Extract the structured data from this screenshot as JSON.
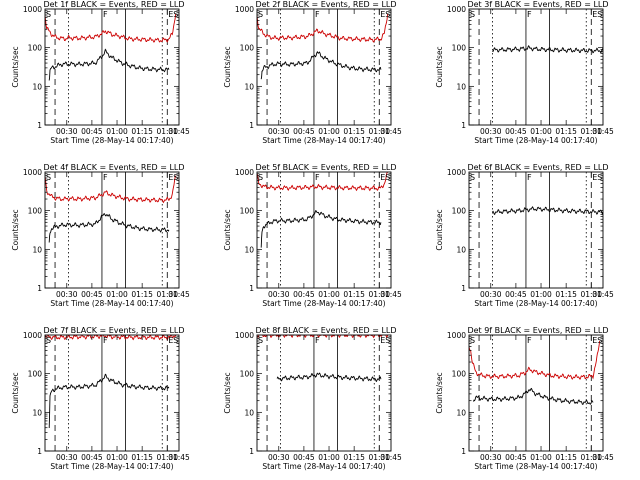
{
  "chart_data": [
    {
      "type": "line",
      "title": "Det 1f BLACK = Events, RED = LLD",
      "xlabel": "Start Time (28-May-14 00:17:40)",
      "ylabel": "Counts/sec",
      "x_ticks": [
        "00:30",
        "00:45",
        "01:00",
        "01:15",
        "01:30",
        "01:45"
      ],
      "y_ticks": [
        "1",
        "10",
        "100",
        "1000"
      ],
      "ylim": [
        1,
        1000
      ],
      "log_y": true,
      "markers": [
        "S",
        "F",
        "E",
        "S"
      ],
      "series": [
        {
          "color": "#cc0000",
          "t": [
            0,
            1,
            4,
            6,
            8,
            10,
            12,
            14,
            20,
            30,
            34,
            36,
            40,
            46,
            50,
            56,
            62,
            70,
            74,
            76,
            78
          ],
          "v": [
            700,
            320,
            220,
            190,
            180,
            175,
            170,
            180,
            175,
            190,
            230,
            270,
            220,
            190,
            170,
            165,
            160,
            155,
            165,
            230,
            750
          ]
        },
        {
          "color": "#000000",
          "t": [
            2.5,
            3,
            4,
            6,
            8,
            10,
            12,
            14,
            20,
            30,
            34,
            36,
            40,
            46,
            50,
            56,
            62,
            70,
            74
          ],
          "v": [
            14,
            25,
            30,
            32,
            35,
            37,
            38,
            38,
            37,
            40,
            60,
            80,
            55,
            40,
            35,
            30,
            28,
            27,
            27
          ]
        }
      ]
    },
    {
      "type": "line",
      "title": "Det 2f BLACK = Events, RED = LLD",
      "xlabel": "Start Time (28-May-14 00:17:40)",
      "ylabel": "Counts/sec",
      "x_ticks": [
        "00:30",
        "00:45",
        "01:00",
        "01:15",
        "01:30",
        "01:45"
      ],
      "y_ticks": [
        "1",
        "10",
        "100",
        "1000"
      ],
      "ylim": [
        1,
        1000
      ],
      "log_y": true,
      "markers": [
        "S",
        "F",
        "E",
        "S"
      ],
      "series": [
        {
          "color": "#cc0000",
          "t": [
            0,
            1,
            4,
            6,
            8,
            10,
            12,
            14,
            20,
            30,
            34,
            36,
            40,
            46,
            50,
            56,
            62,
            70,
            74,
            76,
            78
          ],
          "v": [
            700,
            320,
            230,
            200,
            185,
            180,
            175,
            180,
            180,
            195,
            240,
            280,
            230,
            195,
            175,
            170,
            165,
            160,
            170,
            230,
            750
          ]
        },
        {
          "color": "#000000",
          "t": [
            2.5,
            3,
            4,
            6,
            8,
            10,
            12,
            14,
            20,
            30,
            34,
            36,
            40,
            46,
            50,
            56,
            62,
            70,
            74
          ],
          "v": [
            14,
            25,
            30,
            32,
            35,
            37,
            38,
            38,
            37,
            40,
            60,
            75,
            55,
            40,
            35,
            30,
            28,
            27,
            27
          ]
        }
      ]
    },
    {
      "type": "line",
      "title": "Det 3f BLACK = Events, RED = LLD",
      "xlabel": "Start Time (28-May-14 00:17:40)",
      "ylabel": "Counts/sec",
      "x_ticks": [
        "00:30",
        "00:45",
        "01:00",
        "01:15",
        "01:30",
        "01:45"
      ],
      "y_ticks": [
        "1",
        "10",
        "100",
        "1000"
      ],
      "ylim": [
        1,
        1000
      ],
      "log_y": true,
      "markers": [
        "S",
        "F",
        "E",
        "S"
      ],
      "series": [
        {
          "color": "#000000",
          "t": [
            14,
            16,
            20,
            30,
            36,
            40,
            50,
            60,
            70,
            80
          ],
          "v": [
            85,
            88,
            88,
            92,
            98,
            92,
            88,
            86,
            84,
            84
          ]
        }
      ]
    },
    {
      "type": "line",
      "title": "Det 4f BLACK = Events, RED = LLD",
      "xlabel": "Start Time (28-May-14 00:17:40)",
      "ylabel": "Counts/sec",
      "x_ticks": [
        "00:30",
        "00:45",
        "01:00",
        "01:15",
        "01:30",
        "01:45"
      ],
      "y_ticks": [
        "1",
        "10",
        "100",
        "1000"
      ],
      "ylim": [
        1,
        1000
      ],
      "log_y": true,
      "markers": [
        "S",
        "F",
        "E",
        "S"
      ],
      "series": [
        {
          "color": "#cc0000",
          "t": [
            0,
            1,
            4,
            6,
            8,
            10,
            12,
            14,
            20,
            30,
            34,
            36,
            40,
            46,
            50,
            56,
            62,
            70,
            74,
            76,
            78
          ],
          "v": [
            750,
            320,
            230,
            215,
            205,
            200,
            200,
            205,
            200,
            215,
            260,
            300,
            250,
            215,
            200,
            195,
            190,
            185,
            195,
            260,
            800
          ]
        },
        {
          "color": "#000000",
          "t": [
            2.5,
            3,
            4,
            6,
            8,
            10,
            12,
            14,
            20,
            30,
            34,
            36,
            40,
            46,
            50,
            56,
            62,
            70,
            74
          ],
          "v": [
            15,
            28,
            35,
            38,
            40,
            42,
            43,
            43,
            42,
            45,
            70,
            85,
            60,
            45,
            40,
            35,
            33,
            32,
            32
          ]
        }
      ]
    },
    {
      "type": "line",
      "title": "Det 5f BLACK = Events, RED = LLD",
      "xlabel": "Start Time (28-May-14 00:17:40)",
      "ylabel": "Counts/sec",
      "x_ticks": [
        "00:30",
        "00:45",
        "01:00",
        "01:15",
        "01:30",
        "01:45"
      ],
      "y_ticks": [
        "1",
        "10",
        "100",
        "1000"
      ],
      "ylim": [
        1,
        1000
      ],
      "log_y": true,
      "markers": [
        "S",
        "F",
        "E",
        "S"
      ],
      "series": [
        {
          "color": "#cc0000",
          "t": [
            0,
            1,
            4,
            8,
            12,
            20,
            30,
            36,
            40,
            50,
            60,
            74,
            76,
            78
          ],
          "v": [
            900,
            500,
            420,
            400,
            390,
            390,
            400,
            420,
            400,
            390,
            385,
            380,
            500,
            950
          ]
        },
        {
          "color": "#000000",
          "t": [
            2.5,
            3,
            4,
            6,
            8,
            10,
            12,
            14,
            20,
            30,
            34,
            36,
            40,
            46,
            50,
            56,
            62,
            70,
            74
          ],
          "v": [
            12,
            28,
            40,
            45,
            50,
            53,
            55,
            55,
            55,
            60,
            80,
            95,
            75,
            62,
            58,
            55,
            52,
            50,
            50
          ]
        }
      ]
    },
    {
      "type": "line",
      "title": "Det 6f BLACK = Events, RED = LLD",
      "xlabel": "Start Time (28-May-14 00:17:40)",
      "ylabel": "Counts/sec",
      "x_ticks": [
        "00:30",
        "00:45",
        "01:00",
        "01:15",
        "01:30",
        "01:45"
      ],
      "y_ticks": [
        "1",
        "10",
        "100",
        "1000"
      ],
      "ylim": [
        1,
        1000
      ],
      "log_y": true,
      "markers": [
        "S",
        "F",
        "E",
        "S"
      ],
      "series": [
        {
          "color": "#000000",
          "t": [
            14,
            16,
            20,
            30,
            36,
            40,
            50,
            60,
            70,
            80
          ],
          "v": [
            90,
            92,
            95,
            100,
            108,
            112,
            105,
            98,
            95,
            92
          ]
        }
      ]
    },
    {
      "type": "line",
      "title": "Det 7f BLACK = Events, RED = LLD",
      "xlabel": "Start Time (28-May-14 00:17:40)",
      "ylabel": "Counts/sec",
      "x_ticks": [
        "00:30",
        "00:45",
        "01:00",
        "01:15",
        "01:30",
        "01:45"
      ],
      "y_ticks": [
        "1",
        "10",
        "100",
        "1000"
      ],
      "ylim": [
        1,
        1000
      ],
      "log_y": true,
      "markers": [
        "S",
        "F",
        "E",
        "S"
      ],
      "series": [
        {
          "color": "#cc0000",
          "t": [
            0,
            1,
            4,
            8,
            12,
            20,
            30,
            36,
            40,
            50,
            60,
            74,
            76,
            78
          ],
          "v": [
            1000,
            900,
            880,
            870,
            880,
            900,
            920,
            950,
            900,
            880,
            870,
            870,
            920,
            1000
          ]
        },
        {
          "color": "#000000",
          "t": [
            2.5,
            3,
            4,
            6,
            8,
            10,
            12,
            14,
            20,
            30,
            34,
            36,
            40,
            46,
            50,
            56,
            62,
            70,
            74
          ],
          "v": [
            4,
            25,
            35,
            40,
            42,
            44,
            45,
            45,
            45,
            50,
            70,
            85,
            65,
            52,
            48,
            45,
            43,
            42,
            42
          ]
        }
      ]
    },
    {
      "type": "line",
      "title": "Det 8f BLACK = Events, RED = LLD",
      "xlabel": "Start Time (28-May-14 00:17:40)",
      "ylabel": "Counts/sec",
      "x_ticks": [
        "00:30",
        "00:45",
        "01:00",
        "01:15",
        "01:30",
        "01:45"
      ],
      "y_ticks": [
        "1",
        "10",
        "100",
        "1000"
      ],
      "ylim": [
        1,
        1000
      ],
      "log_y": true,
      "markers": [
        "S",
        "F",
        "E",
        "S"
      ],
      "series": [
        {
          "color": "#cc0000",
          "t": [
            0,
            4,
            12,
            20,
            30,
            40,
            50,
            60,
            70,
            78
          ],
          "v": [
            1000,
            990,
            990,
            1000,
            1000,
            1000,
            1000,
            990,
            990,
            1000
          ]
        },
        {
          "color": "#000000",
          "t": [
            12,
            14,
            20,
            30,
            36,
            40,
            50,
            60,
            70,
            74
          ],
          "v": [
            70,
            75,
            78,
            82,
            95,
            88,
            80,
            76,
            72,
            72
          ]
        }
      ]
    },
    {
      "type": "line",
      "title": "Det 9f BLACK = Events, RED = LLD",
      "xlabel": "Start Time (28-May-14 00:17:40)",
      "ylabel": "Counts/sec",
      "x_ticks": [
        "00:30",
        "00:45",
        "01:00",
        "01:15",
        "01:30",
        "01:45"
      ],
      "y_ticks": [
        "1",
        "10",
        "100",
        "1000"
      ],
      "ylim": [
        1,
        1000
      ],
      "log_y": true,
      "markers": [
        "S",
        "F",
        "E",
        "S"
      ],
      "series": [
        {
          "color": "#cc0000",
          "t": [
            0,
            1,
            2,
            4,
            6,
            8,
            12,
            20,
            30,
            34,
            36,
            40,
            46,
            50,
            56,
            62,
            70,
            74,
            76,
            78
          ],
          "v": [
            500,
            400,
            200,
            110,
            95,
            90,
            85,
            85,
            90,
            110,
            130,
            110,
            95,
            88,
            85,
            82,
            82,
            88,
            200,
            700
          ]
        },
        {
          "color": "#000000",
          "t": [
            2.5,
            3,
            4,
            8,
            12,
            20,
            30,
            34,
            36,
            40,
            46,
            50,
            56,
            62,
            70,
            74
          ],
          "v": [
            18,
            22,
            24,
            23,
            22,
            22,
            24,
            32,
            40,
            30,
            24,
            22,
            20,
            19,
            18,
            18
          ]
        }
      ]
    }
  ]
}
